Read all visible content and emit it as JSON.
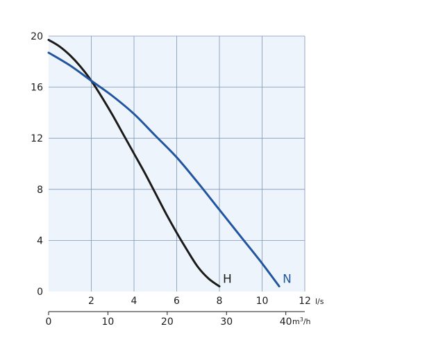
{
  "chart_data": {
    "type": "line",
    "title": "",
    "xlabel": "",
    "ylabel": "",
    "x_primary": {
      "unit": "l/s",
      "range": [
        0,
        12
      ],
      "ticks": [
        {
          "v": 2,
          "label": "2"
        },
        {
          "v": 4,
          "label": "4"
        },
        {
          "v": 6,
          "label": "6"
        },
        {
          "v": 8,
          "label": "8"
        },
        {
          "v": 10,
          "label": "10"
        },
        {
          "v": 12,
          "label": "12"
        }
      ]
    },
    "x_secondary": {
      "unit_base": "m",
      "unit_exp": "3",
      "unit_tail": "/h",
      "range": [
        0,
        43.2
      ],
      "ticks": [
        {
          "v": 0,
          "label": "0"
        },
        {
          "v": 10,
          "label": "10"
        },
        {
          "v": 20,
          "label": "20"
        },
        {
          "v": 30,
          "label": "30"
        },
        {
          "v": 40,
          "label": "40"
        }
      ]
    },
    "y_axis": {
      "range": [
        0,
        20
      ],
      "ticks": [
        {
          "v": 0,
          "label": "0"
        },
        {
          "v": 4,
          "label": "4"
        },
        {
          "v": 8,
          "label": "8"
        },
        {
          "v": 12,
          "label": "12"
        },
        {
          "v": 16,
          "label": "16"
        },
        {
          "v": 20,
          "label": "20"
        }
      ]
    },
    "grid": true,
    "series": [
      {
        "name": "H",
        "color": "#1a1a1a",
        "x": [
          0,
          0.5,
          1,
          1.5,
          2,
          2.5,
          3,
          3.5,
          4,
          4.5,
          5,
          5.5,
          6,
          6.5,
          7,
          7.5,
          8
        ],
        "y": [
          19.7,
          19.2,
          18.5,
          17.6,
          16.5,
          15.2,
          13.8,
          12.3,
          10.8,
          9.3,
          7.7,
          6.1,
          4.6,
          3.2,
          1.9,
          1.0,
          0.4
        ]
      },
      {
        "name": "N",
        "color": "#2255a0",
        "x": [
          0,
          1,
          2,
          3,
          4,
          5,
          6,
          7,
          8,
          9,
          10,
          10.8
        ],
        "y": [
          18.7,
          17.7,
          16.5,
          15.3,
          13.9,
          12.2,
          10.5,
          8.5,
          6.4,
          4.3,
          2.2,
          0.4
        ]
      }
    ]
  }
}
